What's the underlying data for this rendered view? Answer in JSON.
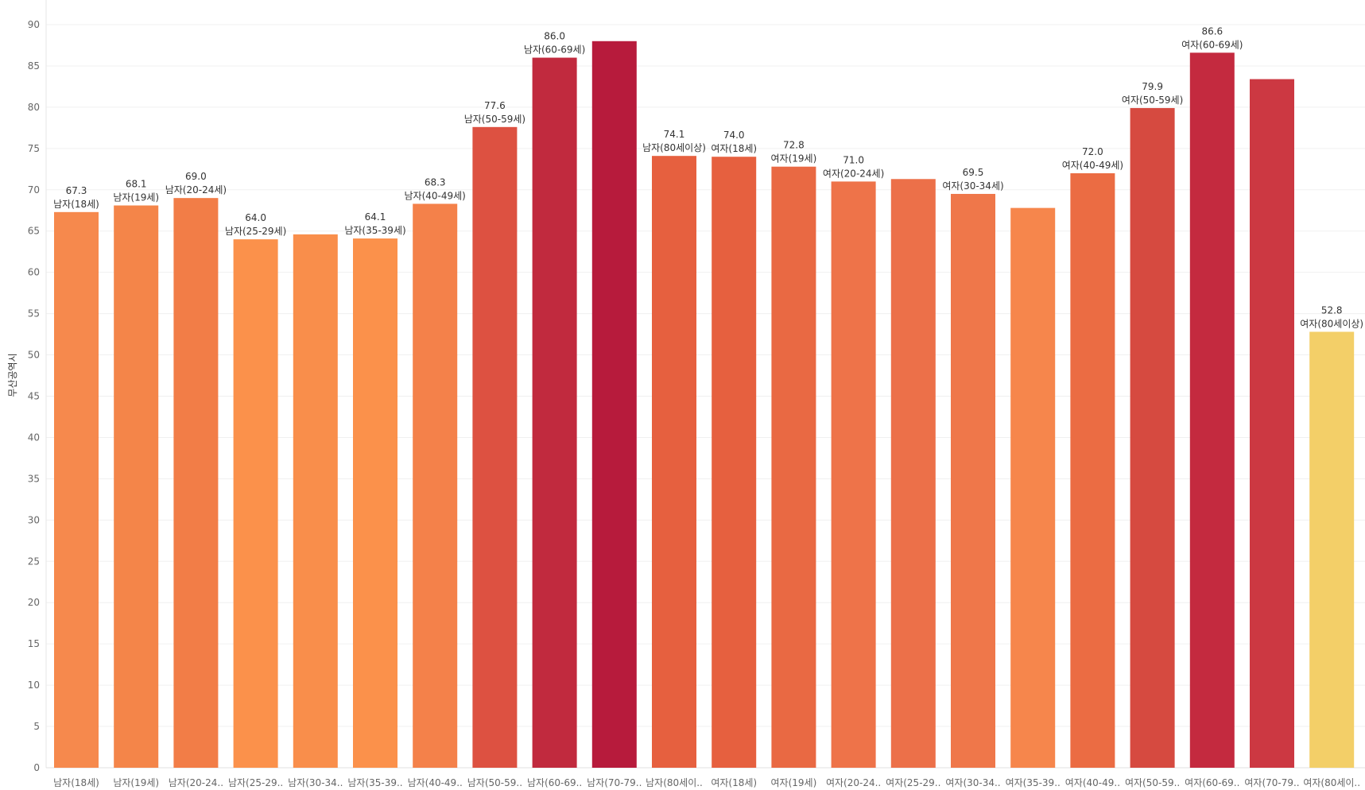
{
  "chart_data": {
    "type": "bar",
    "title": "",
    "xlabel": "",
    "ylabel": "무산공역시",
    "ylim": [
      0,
      90
    ],
    "y_ticks": [
      0,
      5,
      10,
      15,
      20,
      25,
      30,
      35,
      40,
      45,
      50,
      55,
      60,
      65,
      70,
      75,
      80,
      85,
      90
    ],
    "grid": true,
    "categories": [
      "남자(18세)",
      "남자(19세)",
      "남자(20-24세)",
      "남자(25-29세)",
      "남자(30-34세)",
      "남자(35-39세)",
      "남자(40-49세)",
      "남자(50-59세)",
      "남자(60-69세)",
      "남자(70-79세)",
      "남자(80세이상)",
      "여자(18세)",
      "여자(19세)",
      "여자(20-24세)",
      "여자(25-29세)",
      "여자(30-34세)",
      "여자(35-39세)",
      "여자(40-49세)",
      "여자(50-59세)",
      "여자(60-69세)",
      "여자(70-79세)",
      "여자(80세이상)"
    ],
    "tick_labels": [
      "남자(18세)",
      "남자(19세)",
      "남자(20-24..",
      "남자(25-29..",
      "남자(30-34..",
      "남자(35-39..",
      "남자(40-49..",
      "남자(50-59..",
      "남자(60-69..",
      "남자(70-79..",
      "남자(80세이..",
      "여자(18세)",
      "여자(19세)",
      "여자(20-24..",
      "여자(25-29..",
      "여자(30-34..",
      "여자(35-39..",
      "여자(40-49..",
      "여자(50-59..",
      "여자(60-69..",
      "여자(70-79..",
      "여자(80세이.."
    ],
    "values": [
      67.3,
      68.1,
      69.0,
      64.0,
      64.6,
      64.1,
      68.3,
      77.6,
      86.0,
      88.0,
      74.1,
      74.0,
      72.8,
      71.0,
      71.3,
      69.5,
      67.8,
      72.0,
      79.9,
      86.6,
      83.4,
      52.8
    ],
    "data_labels": [
      {
        "index": 0,
        "value": "67.3",
        "name": "남자(18세)"
      },
      {
        "index": 1,
        "value": "68.1",
        "name": "남자(19세)"
      },
      {
        "index": 2,
        "value": "69.0",
        "name": "남자(20-24세)"
      },
      {
        "index": 3,
        "value": "64.0",
        "name": "남자(25-29세)"
      },
      {
        "index": 5,
        "value": "64.1",
        "name": "남자(35-39세)"
      },
      {
        "index": 6,
        "value": "68.3",
        "name": "남자(40-49세)"
      },
      {
        "index": 7,
        "value": "77.6",
        "name": "남자(50-59세)"
      },
      {
        "index": 8,
        "value": "86.0",
        "name": "남자(60-69세)"
      },
      {
        "index": 10,
        "value": "74.1",
        "name": "남자(80세이상)"
      },
      {
        "index": 11,
        "value": "74.0",
        "name": "여자(18세)"
      },
      {
        "index": 12,
        "value": "72.8",
        "name": "여자(19세)"
      },
      {
        "index": 13,
        "value": "71.0",
        "name": "여자(20-24세)"
      },
      {
        "index": 15,
        "value": "69.5",
        "name": "여자(30-34세)"
      },
      {
        "index": 17,
        "value": "72.0",
        "name": "여자(40-49세)"
      },
      {
        "index": 18,
        "value": "79.9",
        "name": "여자(50-59세)"
      },
      {
        "index": 19,
        "value": "86.6",
        "name": "여자(60-69세)"
      },
      {
        "index": 21,
        "value": "52.8",
        "name": "여자(80세이상)"
      }
    ],
    "colors": [
      "#f6894d",
      "#f48549",
      "#f27d47",
      "#fb914b",
      "#f98e4b",
      "#fb914b",
      "#f4814a",
      "#dd5141",
      "#c12a3e",
      "#b71b3c",
      "#e6603f",
      "#e6603f",
      "#e96943",
      "#ee7349",
      "#ec7049",
      "#ef774a",
      "#f6864c",
      "#eb6c43",
      "#d64a40",
      "#c42a3f",
      "#cc3842",
      "#f3cf68"
    ]
  }
}
